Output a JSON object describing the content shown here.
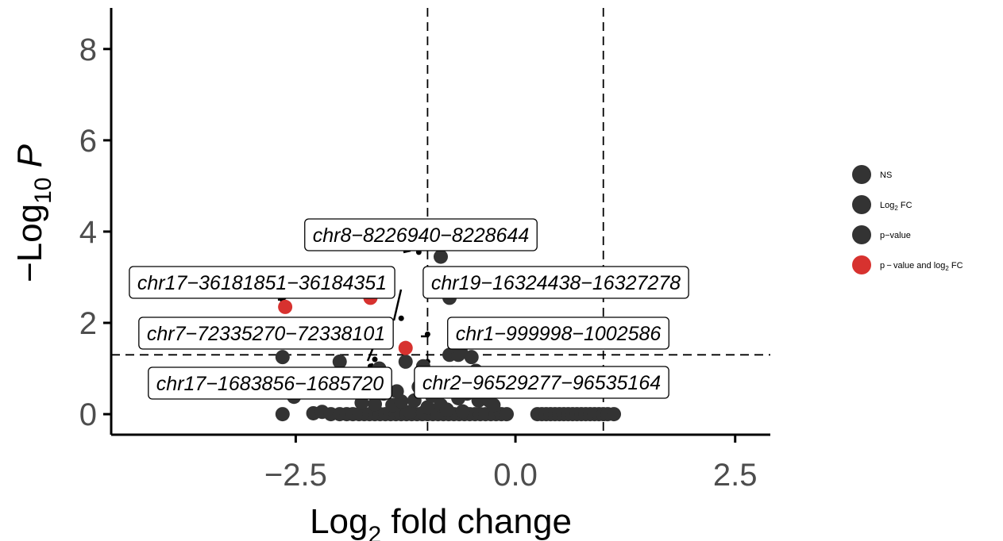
{
  "chart_data": {
    "type": "scatter",
    "xlabel": {
      "base": "Log",
      "sub": "2",
      "rest": " fold change"
    },
    "ylabel": {
      "pre": "−Log",
      "sub": "10",
      "italic": "P"
    },
    "xlim": [
      -4.6,
      2.9
    ],
    "ylim": [
      -0.45,
      8.9
    ],
    "x_ticks": [
      -2.5,
      0.0,
      2.5
    ],
    "x_tick_labels": [
      "−2.5",
      "0.0",
      "2.5"
    ],
    "y_ticks": [
      0,
      2,
      4,
      6,
      8
    ],
    "y_tick_labels": [
      "0",
      "2",
      "4",
      "6",
      "8"
    ],
    "cutoffs": {
      "log2fc": [
        -1,
        1
      ],
      "p_value_line": 1.3
    },
    "grid": false,
    "legend_position": "right",
    "legend": [
      {
        "key": "ns",
        "label": "NS",
        "color": "#333333"
      },
      {
        "key": "fc",
        "label": "Log",
        "sub": "2",
        "suffix": " FC",
        "color": "#333333"
      },
      {
        "key": "p",
        "label": "p−value",
        "color": "#333333"
      },
      {
        "key": "both",
        "label": "p − value and log",
        "sub": "2",
        "suffix": " FC",
        "color": "#d7322f"
      }
    ],
    "series": [
      {
        "key": "ns",
        "color": "#333333",
        "points": [
          [
            -2.65,
            0
          ],
          [
            -2.3,
            0.02
          ],
          [
            -2.2,
            0.05
          ],
          [
            -2.1,
            0
          ],
          [
            -2.0,
            0
          ],
          [
            -1.92,
            0
          ],
          [
            -1.85,
            0
          ],
          [
            -1.78,
            0
          ],
          [
            -1.72,
            0
          ],
          [
            -1.66,
            0
          ],
          [
            -1.6,
            0
          ],
          [
            -1.54,
            0
          ],
          [
            -1.48,
            0
          ],
          [
            -1.42,
            0
          ],
          [
            -1.36,
            0
          ],
          [
            -1.3,
            0
          ],
          [
            -1.24,
            0
          ],
          [
            -1.18,
            0
          ],
          [
            -1.12,
            0
          ],
          [
            -1.06,
            0
          ],
          [
            -1.0,
            0
          ],
          [
            -0.94,
            0
          ],
          [
            -0.88,
            0
          ],
          [
            -0.82,
            0
          ],
          [
            -0.76,
            0
          ],
          [
            -0.7,
            0
          ],
          [
            -0.64,
            0
          ],
          [
            -0.58,
            0
          ],
          [
            -0.52,
            0
          ],
          [
            -0.46,
            0
          ],
          [
            -0.4,
            0
          ],
          [
            -0.34,
            0
          ],
          [
            -0.28,
            0
          ],
          [
            -0.22,
            0
          ],
          [
            -0.16,
            0
          ],
          [
            -0.1,
            0
          ],
          [
            -1.2,
            0.05
          ],
          [
            -1.05,
            0.03
          ],
          [
            -0.85,
            0.04
          ],
          [
            -0.6,
            0.06
          ],
          [
            0.25,
            0
          ],
          [
            0.3,
            0
          ],
          [
            0.35,
            0
          ],
          [
            0.4,
            0
          ],
          [
            0.45,
            0
          ],
          [
            0.5,
            0
          ],
          [
            0.55,
            0
          ],
          [
            0.6,
            0
          ],
          [
            0.65,
            0
          ],
          [
            0.7,
            0
          ],
          [
            0.75,
            0
          ],
          [
            0.8,
            0
          ],
          [
            0.85,
            0
          ],
          [
            0.9,
            0
          ],
          [
            0.95,
            0
          ],
          [
            1.0,
            0
          ],
          [
            1.05,
            0
          ],
          [
            1.12,
            0
          ],
          [
            -2.52,
            0.38
          ],
          [
            -1.75,
            0.25
          ],
          [
            -1.6,
            0.22
          ],
          [
            -1.4,
            0.2
          ],
          [
            -1.3,
            0.28
          ],
          [
            -1.15,
            0.3
          ],
          [
            -1.0,
            0.15
          ],
          [
            -0.95,
            0.4
          ],
          [
            -0.85,
            0.2
          ],
          [
            -0.78,
            0.1
          ],
          [
            -0.7,
            0.5
          ],
          [
            -0.65,
            0.35
          ],
          [
            -0.55,
            0.45
          ],
          [
            -0.5,
            0.6
          ],
          [
            -0.42,
            0.3
          ],
          [
            -0.38,
            0.55
          ],
          [
            -0.3,
            0.3
          ],
          [
            -0.25,
            0.2
          ],
          [
            -0.6,
            0.75
          ],
          [
            -0.8,
            0.7
          ],
          [
            -0.9,
            0.85
          ],
          [
            -1.1,
            0.6
          ],
          [
            -1.35,
            0.5
          ],
          [
            -1.5,
            0.45
          ],
          [
            -0.72,
            0.9
          ],
          [
            -0.45,
            0.95
          ]
        ]
      },
      {
        "key": "p",
        "color": "#333333",
        "points": [
          [
            -0.85,
            3.45
          ],
          [
            -0.75,
            2.55
          ],
          [
            -2.65,
            1.25
          ],
          [
            -2.0,
            1.15
          ],
          [
            -1.25,
            1.15
          ],
          [
            -0.75,
            1.3
          ],
          [
            -0.65,
            1.3
          ],
          [
            -0.5,
            1.25
          ],
          [
            -1.05,
            1.05
          ],
          [
            -1.55,
            1.0
          ],
          [
            -0.62,
            1.35
          ]
        ]
      },
      {
        "key": "both",
        "color": "#d7322f",
        "points": [
          [
            -2.62,
            2.35
          ],
          [
            -1.65,
            2.55
          ],
          [
            -1.25,
            1.45
          ]
        ]
      }
    ],
    "annotations": [
      {
        "text": "chr8−8226940−8228644",
        "x": -1.1,
        "y": 3.55
      },
      {
        "text": "chr17−36181851−36184351",
        "x": -2.65,
        "y": 2.5
      },
      {
        "text": "chr19−16324438−16327278",
        "x": -1.3,
        "y": 2.1
      },
      {
        "text": "chr7−72335270−72338101",
        "x": -1.6,
        "y": 1.2
      },
      {
        "text": "chr1−999998−1002586",
        "x": -1.0,
        "y": 1.75
      },
      {
        "text": "chr17−1683856−1685720",
        "x": -1.65,
        "y": 1.05
      },
      {
        "text": "chr2−96529277−96535164",
        "x": -1.0,
        "y": 1.15
      }
    ]
  }
}
